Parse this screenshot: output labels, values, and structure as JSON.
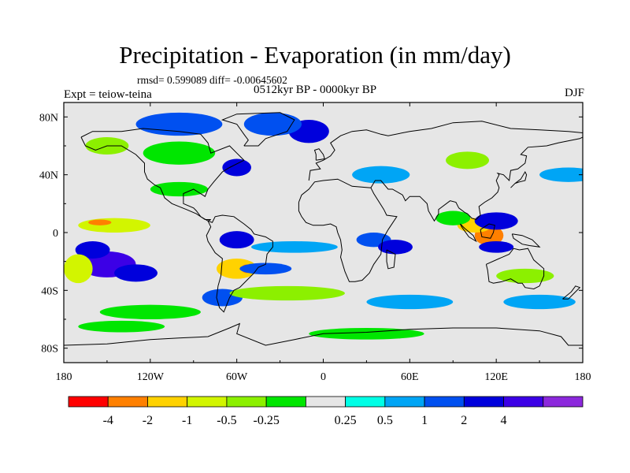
{
  "title": "Precipitation - Evaporation (in mm/day)",
  "stats_text": "rmsd= 0.599089 diff= -0.00645602",
  "period": "0512kyr BP - 0000kyr BP",
  "experiment": "Expt = teiow-teina",
  "season": "DJF",
  "colors": {
    "land": "#e6e6e6",
    "coast": "#000000",
    "frame": "#000000"
  },
  "chart_data": {
    "type": "heatmap",
    "description_variable": "precipitation minus evaporation anomaly",
    "lon_range": [
      -180,
      180
    ],
    "lat_range": [
      -90,
      90
    ],
    "x_ticks": [
      {
        "value": -180,
        "label": "180"
      },
      {
        "value": -120,
        "label": "120W"
      },
      {
        "value": -60,
        "label": "60W"
      },
      {
        "value": 0,
        "label": "0"
      },
      {
        "value": 60,
        "label": "60E"
      },
      {
        "value": 120,
        "label": "120E"
      },
      {
        "value": 180,
        "label": "180"
      }
    ],
    "y_ticks": [
      {
        "value": 80,
        "label": "80N"
      },
      {
        "value": 40,
        "label": "40N"
      },
      {
        "value": 0,
        "label": "0"
      },
      {
        "value": -40,
        "label": "40S"
      },
      {
        "value": -80,
        "label": "80S"
      }
    ],
    "colorbar": {
      "colors": [
        "#ff0000",
        "#ff8000",
        "#ffd200",
        "#d2f500",
        "#8cf000",
        "#00e600",
        "#e6e6e6",
        "#00ffe6",
        "#00a5f5",
        "#0050f0",
        "#0000dc",
        "#3c00e6",
        "#8c28dc"
      ],
      "labels": [
        "-4",
        "-2",
        "-1",
        "-0.5",
        "-0.25",
        "0.25",
        "0.5",
        "1",
        "2",
        "4"
      ],
      "label_boundaries": [
        1,
        2,
        3,
        4,
        5,
        7,
        8,
        9,
        10,
        11
      ]
    },
    "anomaly_regions": [
      {
        "lon": -150,
        "lat": -22,
        "rx": 20,
        "ry": 9,
        "class": 11
      },
      {
        "lon": -160,
        "lat": -12,
        "rx": 12,
        "ry": 6,
        "class": 10
      },
      {
        "lon": -130,
        "lat": -28,
        "rx": 15,
        "ry": 6,
        "class": 10
      },
      {
        "lon": -145,
        "lat": 5,
        "rx": 25,
        "ry": 5,
        "class": 3
      },
      {
        "lon": -155,
        "lat": 7,
        "rx": 8,
        "ry": 2,
        "class": 1
      },
      {
        "lon": -170,
        "lat": -25,
        "rx": 10,
        "ry": 10,
        "class": 3
      },
      {
        "lon": -60,
        "lat": -25,
        "rx": 14,
        "ry": 7,
        "class": 2
      },
      {
        "lon": -53,
        "lat": -25,
        "rx": 4,
        "ry": 3,
        "class": 1
      },
      {
        "lon": -60,
        "lat": -5,
        "rx": 12,
        "ry": 6,
        "class": 10
      },
      {
        "lon": -40,
        "lat": -25,
        "rx": 18,
        "ry": 4,
        "class": 9
      },
      {
        "lon": -20,
        "lat": -10,
        "rx": 30,
        "ry": 4,
        "class": 8
      },
      {
        "lon": 35,
        "lat": -5,
        "rx": 12,
        "ry": 5,
        "class": 9
      },
      {
        "lon": 50,
        "lat": -10,
        "rx": 12,
        "ry": 5,
        "class": 10
      },
      {
        "lon": 115,
        "lat": -2,
        "rx": 10,
        "ry": 7,
        "class": 1
      },
      {
        "lon": 105,
        "lat": 5,
        "rx": 12,
        "ry": 5,
        "class": 2
      },
      {
        "lon": 120,
        "lat": 8,
        "rx": 15,
        "ry": 6,
        "class": 10
      },
      {
        "lon": 120,
        "lat": -10,
        "rx": 12,
        "ry": 4,
        "class": 10
      },
      {
        "lon": 90,
        "lat": 10,
        "rx": 12,
        "ry": 5,
        "class": 5
      },
      {
        "lon": 140,
        "lat": -30,
        "rx": 20,
        "ry": 5,
        "class": 4
      },
      {
        "lon": -10,
        "lat": 70,
        "rx": 14,
        "ry": 8,
        "class": 10
      },
      {
        "lon": -35,
        "lat": 75,
        "rx": 20,
        "ry": 8,
        "class": 9
      },
      {
        "lon": -60,
        "lat": 45,
        "rx": 10,
        "ry": 6,
        "class": 10
      },
      {
        "lon": -100,
        "lat": 75,
        "rx": 30,
        "ry": 8,
        "class": 9
      },
      {
        "lon": -100,
        "lat": 55,
        "rx": 25,
        "ry": 8,
        "class": 5
      },
      {
        "lon": -150,
        "lat": 60,
        "rx": 15,
        "ry": 6,
        "class": 4
      },
      {
        "lon": 40,
        "lat": 40,
        "rx": 20,
        "ry": 6,
        "class": 8
      },
      {
        "lon": 100,
        "lat": 50,
        "rx": 15,
        "ry": 6,
        "class": 4
      },
      {
        "lon": -100,
        "lat": 30,
        "rx": 20,
        "ry": 5,
        "class": 5
      },
      {
        "lon": -70,
        "lat": -45,
        "rx": 14,
        "ry": 6,
        "class": 9
      },
      {
        "lon": -25,
        "lat": -42,
        "rx": 40,
        "ry": 5,
        "class": 4
      },
      {
        "lon": 60,
        "lat": -48,
        "rx": 30,
        "ry": 5,
        "class": 8
      },
      {
        "lon": 150,
        "lat": -48,
        "rx": 25,
        "ry": 5,
        "class": 8
      },
      {
        "lon": -120,
        "lat": -55,
        "rx": 35,
        "ry": 5,
        "class": 5
      },
      {
        "lon": 30,
        "lat": -70,
        "rx": 40,
        "ry": 4,
        "class": 5
      },
      {
        "lon": -140,
        "lat": -65,
        "rx": 30,
        "ry": 4,
        "class": 5
      },
      {
        "lon": 170,
        "lat": 40,
        "rx": 20,
        "ry": 5,
        "class": 8
      }
    ]
  }
}
